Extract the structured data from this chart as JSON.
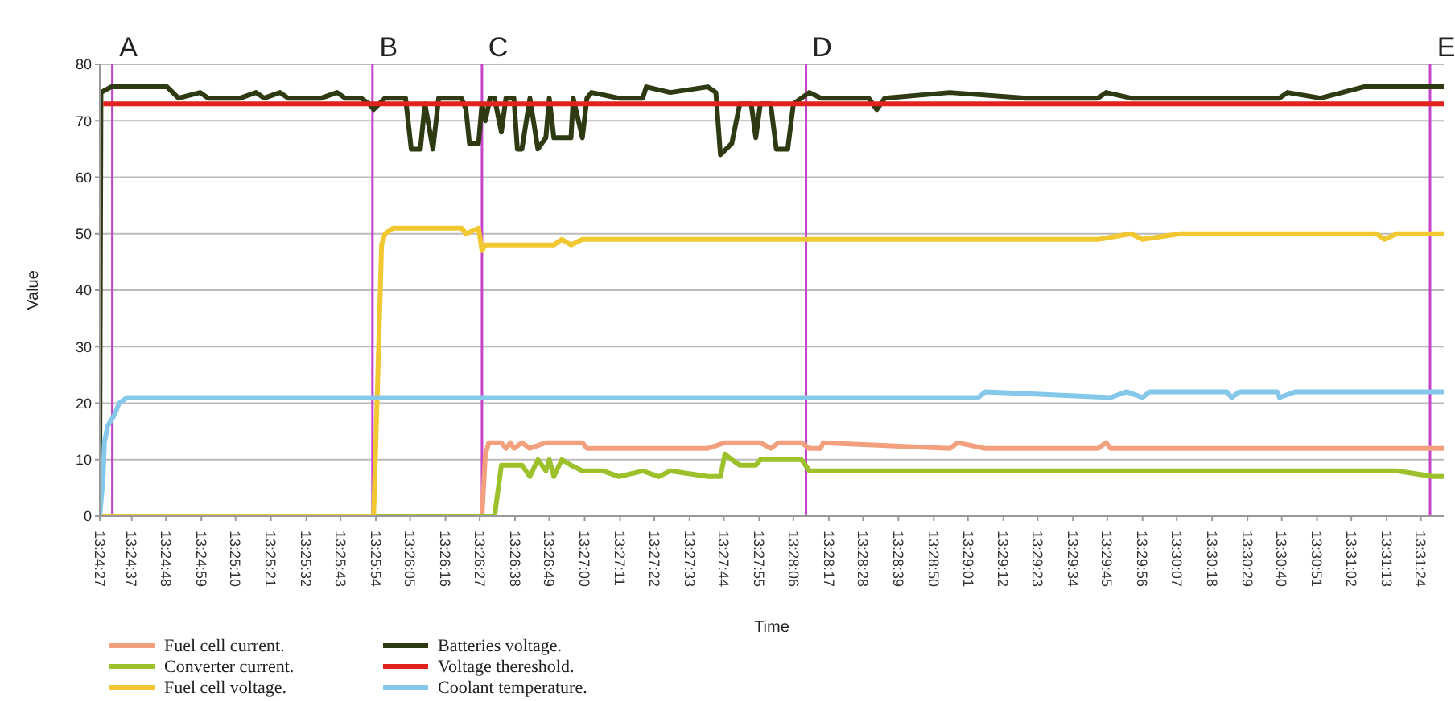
{
  "chart_data": {
    "type": "line",
    "xlabel": "Time",
    "ylabel": "Value",
    "xlim": [
      13.4075,
      13.5253
    ],
    "ylim": [
      0,
      80
    ],
    "yticks": [
      0,
      10,
      20,
      30,
      40,
      50,
      60,
      70,
      80
    ],
    "xticks": [
      {
        "value": 13.4075,
        "label": "13:24:27"
      },
      {
        "value": 13.4103,
        "label": "13:24:37"
      },
      {
        "value": 13.4133,
        "label": "13:24:48"
      },
      {
        "value": 13.4164,
        "label": "13:24:59"
      },
      {
        "value": 13.4194,
        "label": "13:25:10"
      },
      {
        "value": 13.4225,
        "label": "13:25:21"
      },
      {
        "value": 13.4256,
        "label": "13:25:32"
      },
      {
        "value": 13.4286,
        "label": "13:25:43"
      },
      {
        "value": 13.4317,
        "label": "13:25:54"
      },
      {
        "value": 13.4347,
        "label": "13:26:05"
      },
      {
        "value": 13.4378,
        "label": "13:26:16"
      },
      {
        "value": 13.4408,
        "label": "13:26:27"
      },
      {
        "value": 13.4439,
        "label": "13:26:38"
      },
      {
        "value": 13.4469,
        "label": "13:26:49"
      },
      {
        "value": 13.45,
        "label": "13:27:00"
      },
      {
        "value": 13.4531,
        "label": "13:27:11"
      },
      {
        "value": 13.4561,
        "label": "13:27:22"
      },
      {
        "value": 13.4592,
        "label": "13:27:33"
      },
      {
        "value": 13.4622,
        "label": "13:27:44"
      },
      {
        "value": 13.4653,
        "label": "13:27:55"
      },
      {
        "value": 13.4683,
        "label": "13:28:06"
      },
      {
        "value": 13.4714,
        "label": "13:28:17"
      },
      {
        "value": 13.4744,
        "label": "13:28:28"
      },
      {
        "value": 13.4775,
        "label": "13:28:39"
      },
      {
        "value": 13.4806,
        "label": "13:28:50"
      },
      {
        "value": 13.4836,
        "label": "13:29:01"
      },
      {
        "value": 13.4867,
        "label": "13:29:12"
      },
      {
        "value": 13.4897,
        "label": "13:29:23"
      },
      {
        "value": 13.4928,
        "label": "13:29:34"
      },
      {
        "value": 13.4958,
        "label": "13:29:45"
      },
      {
        "value": 13.4989,
        "label": "13:29:56"
      },
      {
        "value": 13.5019,
        "label": "13:30:07"
      },
      {
        "value": 13.505,
        "label": "13:30:18"
      },
      {
        "value": 13.5081,
        "label": "13:30:29"
      },
      {
        "value": 13.5111,
        "label": "13:30:40"
      },
      {
        "value": 13.5142,
        "label": "13:30:51"
      },
      {
        "value": 13.5172,
        "label": "13:31:02"
      },
      {
        "value": 13.5203,
        "label": "13:31:13"
      },
      {
        "value": 13.5233,
        "label": "13:31:24"
      }
    ],
    "grid": "y",
    "legend": "bottom",
    "marker": "none",
    "line_style": "solid",
    "ref_lines": [
      {
        "axis": "x",
        "value": 13.4086,
        "label": "A",
        "color": "#c444cc"
      },
      {
        "axis": "x",
        "value": 13.4314,
        "label": "B",
        "color": "#c444cc"
      },
      {
        "axis": "x",
        "value": 13.441,
        "label": "C",
        "color": "#c444cc"
      },
      {
        "axis": "x",
        "value": 13.4694,
        "label": "D",
        "color": "#c444cc"
      },
      {
        "axis": "x",
        "value": 13.5241,
        "label": "E",
        "color": "#c444cc"
      }
    ],
    "series": [
      {
        "name": "Fuel cell current.",
        "color": "#f2a07e",
        "x": [
          13.4075,
          13.441,
          13.4413,
          13.4416,
          13.4427,
          13.4431,
          13.4435,
          13.4438,
          13.4445,
          13.4452,
          13.4466,
          13.4498,
          13.4502,
          13.4608,
          13.4623,
          13.4654,
          13.4663,
          13.467,
          13.469,
          13.4697,
          13.4707,
          13.4709,
          13.482,
          13.4827,
          13.4851,
          13.495,
          13.4957,
          13.4961,
          13.5253
        ],
        "values": [
          0,
          0,
          11,
          13,
          13,
          12,
          13,
          12,
          13,
          12,
          13,
          13,
          12,
          12,
          13,
          13,
          12,
          13,
          13,
          12,
          12,
          13,
          12,
          13,
          12,
          12,
          13,
          12,
          12
        ]
      },
      {
        "name": "Converter current.",
        "color": "#9cc12b",
        "x": [
          13.4075,
          13.4421,
          13.4427,
          13.4445,
          13.4452,
          13.4459,
          13.4466,
          13.4469,
          13.4473,
          13.448,
          13.4488,
          13.4498,
          13.4516,
          13.453,
          13.4551,
          13.4565,
          13.4575,
          13.4608,
          13.4619,
          13.4623,
          13.4629,
          13.4636,
          13.465,
          13.4654,
          13.4668,
          13.467,
          13.469,
          13.4697,
          13.5212,
          13.5244,
          13.5253
        ],
        "values": [
          0,
          0,
          9,
          9,
          7,
          10,
          8,
          10,
          7,
          10,
          9,
          8,
          8,
          7,
          8,
          7,
          8,
          7,
          7,
          11,
          10,
          9,
          9,
          10,
          10,
          10,
          10,
          8,
          8,
          7,
          7
        ]
      },
      {
        "name": "Fuel cell voltage.",
        "color": "#f2c832",
        "x": [
          13.4075,
          13.4315,
          13.4318,
          13.4322,
          13.4325,
          13.4332,
          13.4392,
          13.4396,
          13.4407,
          13.441,
          13.4413,
          13.4473,
          13.448,
          13.4488,
          13.4498,
          13.495,
          13.4979,
          13.4989,
          13.5022,
          13.5194,
          13.5201,
          13.5212,
          13.5253
        ],
        "values": [
          0,
          0,
          20,
          48,
          50,
          51,
          51,
          50,
          51,
          47,
          48,
          48,
          49,
          48,
          49,
          49,
          50,
          49,
          50,
          50,
          49,
          50,
          50
        ]
      },
      {
        "name": "Batteries voltage.",
        "color": "#2e3b12",
        "x": [
          13.4075,
          13.4076,
          13.4085,
          13.4134,
          13.4144,
          13.4163,
          13.417,
          13.4198,
          13.4212,
          13.4219,
          13.4233,
          13.424,
          13.4269,
          13.4283,
          13.429,
          13.4304,
          13.4311,
          13.4315,
          13.4325,
          13.4343,
          13.4348,
          13.4356,
          13.436,
          13.4367,
          13.4372,
          13.4392,
          13.4396,
          13.4399,
          13.4407,
          13.441,
          13.4413,
          13.4417,
          13.4421,
          13.4427,
          13.4431,
          13.4438,
          13.4441,
          13.4445,
          13.4452,
          13.4459,
          13.4466,
          13.4469,
          13.4473,
          13.4488,
          13.449,
          13.4498,
          13.4502,
          13.4506,
          13.453,
          13.4551,
          13.4554,
          13.4575,
          13.4608,
          13.4615,
          13.4619,
          13.4629,
          13.4636,
          13.4646,
          13.465,
          13.4654,
          13.4663,
          13.4668,
          13.4678,
          13.4683,
          13.4697,
          13.4707,
          13.4749,
          13.4756,
          13.4763,
          13.482,
          13.4886,
          13.495,
          13.4957,
          13.4979,
          13.5109,
          13.5116,
          13.5145,
          13.5183,
          13.5253
        ],
        "values": [
          10,
          75,
          76,
          76,
          74,
          75,
          74,
          74,
          75,
          74,
          75,
          74,
          74,
          75,
          74,
          74,
          73,
          72,
          74,
          74,
          65,
          65,
          73,
          65,
          74,
          74,
          72,
          66,
          66,
          73,
          70,
          74,
          74,
          68,
          74,
          74,
          65,
          65,
          74,
          65,
          67,
          74,
          67,
          67,
          74,
          67,
          74,
          75,
          74,
          74,
          76,
          75,
          76,
          75,
          64,
          66,
          73,
          73,
          67,
          73,
          73,
          65,
          65,
          73,
          75,
          74,
          74,
          72,
          74,
          75,
          74,
          74,
          75,
          74,
          74,
          75,
          74,
          76,
          76
        ]
      },
      {
        "name": "Voltage thereshold.",
        "color": "#e0231c",
        "x": [
          13.4078,
          13.5253
        ],
        "values": [
          73,
          73
        ]
      },
      {
        "name": "Coolant temperature.",
        "color": "#85c8ea",
        "x": [
          13.4075,
          13.4078,
          13.4079,
          13.4082,
          13.4088,
          13.4092,
          13.4099,
          13.4845,
          13.4851,
          13.4961,
          13.4975,
          13.4989,
          13.4995,
          13.5063,
          13.5067,
          13.5074,
          13.5107,
          13.5109,
          13.5123,
          13.5253
        ],
        "values": [
          0,
          7,
          13,
          16,
          18,
          20,
          21,
          21,
          22,
          21,
          22,
          21,
          22,
          22,
          21,
          22,
          22,
          21,
          22,
          22
        ]
      }
    ]
  }
}
